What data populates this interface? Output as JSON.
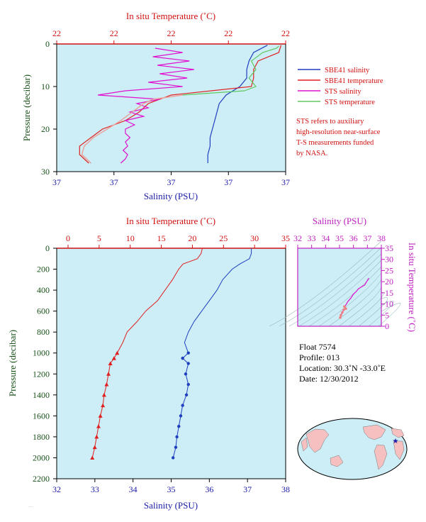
{
  "colors": {
    "plot_bg": "#cdeef6",
    "sbe_salinity": "#1f3fbf",
    "sbe_temperature": "#e02020",
    "sts_salinity": "#e010d0",
    "sts_temperature": "#60c860",
    "sts_temperature_overlap": "#f4a0a0",
    "temp_axis": "#d01010",
    "sal_axis": "#1a1aa8",
    "pres_axis": "#185018",
    "ts_axis": "#c020c0",
    "note": "#d01010"
  },
  "top_panel": {
    "temp_title": "In situ Temperature (˚C)",
    "sal_title": "Salinity (PSU)",
    "pres_title": "Pressure (decibar)",
    "temp_ticks": [
      "22",
      "22",
      "22",
      "22",
      "22"
    ],
    "sal_ticks": [
      "37",
      "37",
      "37",
      "37",
      "37"
    ],
    "pres_ticks": [
      "0",
      "10",
      "20",
      "30"
    ]
  },
  "legend": {
    "items": [
      {
        "label": "SBE41 salinity",
        "color": "#1f3fbf"
      },
      {
        "label": "SBE41 temperature",
        "color": "#e02020"
      },
      {
        "label": "STS salinity",
        "color": "#e010d0"
      },
      {
        "label": "STS temperature",
        "color": "#60c860"
      }
    ],
    "note_lines": [
      "STS refers to auxiliary",
      "high-resolution near-surface",
      "T-S measurements funded",
      "by NASA."
    ]
  },
  "bottom_panel": {
    "temp_title": "In situ Temperature (˚C)",
    "sal_title": "Salinity (PSU)",
    "pres_title": "Pressure (decibar)",
    "temp_ticks": [
      "0",
      "5",
      "10",
      "15",
      "20",
      "25",
      "30",
      "35"
    ],
    "sal_ticks": [
      "32",
      "33",
      "34",
      "35",
      "36",
      "37",
      "38"
    ],
    "pres_ticks": [
      "0",
      "200",
      "400",
      "600",
      "800",
      "1000",
      "1200",
      "1400",
      "1600",
      "1800",
      "2000",
      "2200"
    ]
  },
  "ts_panel": {
    "sal_title": "Salinity (PSU)",
    "temp_title": "In situ Temperature (˚C)",
    "sal_ticks": [
      "32",
      "33",
      "34",
      "35",
      "36",
      "37",
      "38"
    ],
    "temp_ticks": [
      "0",
      "5",
      "10",
      "15",
      "20",
      "25",
      "30",
      "35"
    ]
  },
  "info": {
    "float": "Float  7574",
    "profile": "Profile:  013",
    "location": "Location:  30.3˚N  -33.0˚E",
    "date": "Date:  12/30/2012"
  },
  "chart_data": [
    {
      "type": "line",
      "panel": "near-surface profile",
      "xlabel_top": "In situ Temperature (˚C)",
      "xlabel_bottom": "Salinity (PSU)",
      "ylabel": "Pressure (decibar)",
      "ylim": [
        30,
        0
      ],
      "series": [
        {
          "name": "SBE41 salinity",
          "pressure": [
            0.3,
            2,
            4,
            6,
            8,
            10,
            12,
            14,
            16,
            18,
            20,
            22,
            24,
            26,
            28
          ],
          "x_frac": [
            0.92,
            0.86,
            0.84,
            0.83,
            0.83,
            0.8,
            0.74,
            0.71,
            0.7,
            0.69,
            0.68,
            0.67,
            0.67,
            0.66,
            0.66
          ]
        },
        {
          "name": "SBE41 temperature",
          "pressure": [
            0.3,
            2,
            4,
            6,
            8,
            10,
            12,
            14,
            16,
            18,
            20,
            22,
            24,
            26,
            28
          ],
          "x_frac": [
            0.98,
            0.97,
            0.88,
            0.86,
            0.86,
            0.85,
            0.5,
            0.4,
            0.36,
            0.3,
            0.2,
            0.15,
            0.1,
            0.1,
            0.14
          ]
        },
        {
          "name": "STS salinity",
          "pressure": [
            1,
            2,
            3,
            4,
            5,
            6,
            7,
            8,
            9,
            10,
            11,
            12,
            13,
            14,
            15,
            16,
            17,
            18,
            19,
            20,
            21,
            22,
            23,
            24,
            25,
            26,
            27,
            28
          ],
          "x_frac": [
            0.43,
            0.55,
            0.42,
            0.58,
            0.44,
            0.6,
            0.45,
            0.57,
            0.4,
            0.55,
            0.3,
            0.18,
            0.45,
            0.35,
            0.4,
            0.32,
            0.38,
            0.3,
            0.34,
            0.3,
            0.3,
            0.32,
            0.3,
            0.31,
            0.29,
            0.31,
            0.3,
            0.28
          ]
        },
        {
          "name": "STS temperature",
          "pressure": [
            0.5,
            1,
            2,
            4,
            6,
            8,
            10,
            11,
            12,
            13,
            14,
            16,
            18,
            20,
            22,
            24,
            26,
            28
          ],
          "x_frac": [
            0.97,
            0.96,
            0.9,
            0.85,
            0.87,
            0.84,
            0.87,
            0.82,
            0.55,
            0.42,
            0.38,
            0.33,
            0.28,
            0.22,
            0.16,
            0.12,
            0.11,
            0.15
          ]
        }
      ]
    },
    {
      "type": "line",
      "panel": "full-depth profile",
      "xlabel_top": "In situ Temperature (˚C)",
      "xlabel_bottom": "Salinity (PSU)",
      "ylabel": "Pressure (decibar)",
      "xlim_temperature": [
        0,
        35
      ],
      "xlim_salinity": [
        32,
        38
      ],
      "ylim": [
        2200,
        0
      ],
      "series": [
        {
          "name": "Temperature",
          "pressure": [
            0,
            50,
            100,
            150,
            200,
            300,
            400,
            500,
            600,
            700,
            800,
            900,
            1000,
            1050,
            1100,
            1200,
            1300,
            1400,
            1500,
            1600,
            1700,
            1800,
            1900,
            2000
          ],
          "values": [
            21.6,
            21.4,
            20.8,
            18.5,
            17.8,
            16.8,
            15.6,
            14.4,
            12.5,
            11.1,
            9.5,
            8.8,
            7.9,
            7.4,
            6.8,
            6.5,
            6.2,
            5.8,
            5.6,
            5.2,
            4.9,
            4.6,
            4.3,
            3.9
          ]
        },
        {
          "name": "Salinity",
          "pressure": [
            0,
            50,
            100,
            150,
            200,
            300,
            400,
            500,
            600,
            700,
            800,
            900,
            1000,
            1050,
            1100,
            1200,
            1300,
            1400,
            1500,
            1600,
            1700,
            1800,
            1900,
            2000
          ],
          "values": [
            37.1,
            37.1,
            37.05,
            36.8,
            36.6,
            36.35,
            36.2,
            36.0,
            35.8,
            35.6,
            35.45,
            35.35,
            35.45,
            35.3,
            35.45,
            35.38,
            35.45,
            35.4,
            35.3,
            35.25,
            35.2,
            35.15,
            35.12,
            35.05
          ]
        }
      ]
    },
    {
      "type": "scatter",
      "panel": "T-S diagram",
      "xlabel": "Salinity (PSU)",
      "ylabel": "In situ Temperature (˚C)",
      "xlim": [
        32,
        38
      ],
      "ylim": [
        0,
        35
      ],
      "series": [
        {
          "name": "T-S",
          "salinity": [
            37.1,
            36.8,
            36.6,
            36.35,
            36.2,
            36.0,
            35.8,
            35.6,
            35.45,
            35.35,
            35.45,
            35.3,
            35.2,
            35.1,
            35.05
          ],
          "temperature": [
            21.6,
            18.5,
            17.8,
            16.8,
            15.6,
            14.4,
            12.5,
            11.1,
            9.5,
            8.8,
            7.9,
            7.4,
            6.2,
            5.0,
            3.9
          ]
        }
      ]
    }
  ]
}
